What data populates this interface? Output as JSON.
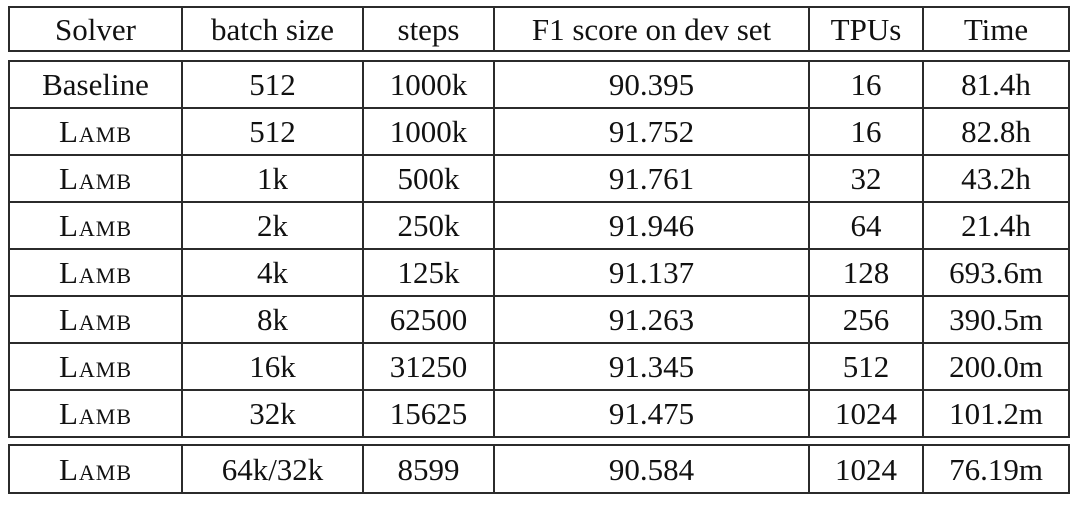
{
  "table": {
    "columns": [
      "Solver",
      "batch size",
      "steps",
      "F1 score on dev set",
      "TPUs",
      "Time"
    ],
    "rows": [
      [
        "Baseline",
        "512",
        "1000k",
        "90.395",
        "16",
        "81.4h"
      ],
      [
        "Lamb",
        "512",
        "1000k",
        "91.752",
        "16",
        "82.8h"
      ],
      [
        "Lamb",
        "1k",
        "500k",
        "91.761",
        "32",
        "43.2h"
      ],
      [
        "Lamb",
        "2k",
        "250k",
        "91.946",
        "64",
        "21.4h"
      ],
      [
        "Lamb",
        "4k",
        "125k",
        "91.137",
        "128",
        "693.6m"
      ],
      [
        "Lamb",
        "8k",
        "62500",
        "91.263",
        "256",
        "390.5m"
      ],
      [
        "Lamb",
        "16k",
        "31250",
        "91.345",
        "512",
        "200.0m"
      ],
      [
        "Lamb",
        "32k",
        "15625",
        "91.475",
        "1024",
        "101.2m"
      ]
    ],
    "final_row": [
      "Lamb",
      "64k/32k",
      "8599",
      "90.584",
      "1024",
      "76.19m"
    ]
  }
}
